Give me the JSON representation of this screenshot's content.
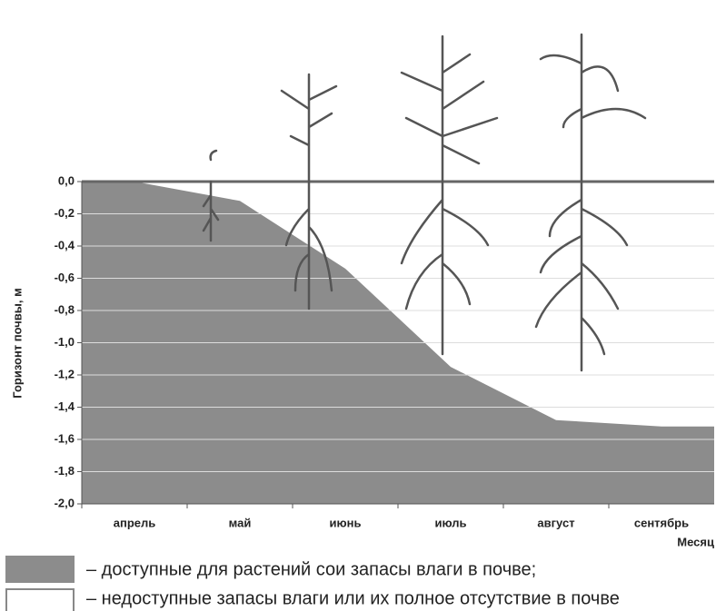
{
  "chart_data": {
    "type": "area",
    "y_label": "Горизонт почвы, м",
    "x_label": "Месяц",
    "categories": [
      "апрель",
      "май",
      "июнь",
      "июль",
      "август",
      "сентябрь"
    ],
    "values": [
      0.0,
      -0.12,
      -0.54,
      -1.15,
      -1.48,
      -1.52
    ],
    "color": "#8c8c8c",
    "ylim": [
      -2.0,
      0.0
    ],
    "yticks": [
      {
        "value": 0.0,
        "label": "0,0"
      },
      {
        "value": -0.2,
        "label": "-0,2"
      },
      {
        "value": -0.4,
        "label": "-0,4"
      },
      {
        "value": -0.6,
        "label": "-0,6"
      },
      {
        "value": -0.8,
        "label": "-0,8"
      },
      {
        "value": -1.0,
        "label": "-1,0"
      },
      {
        "value": -1.2,
        "label": "-1,2"
      },
      {
        "value": -1.4,
        "label": "-1,4"
      },
      {
        "value": -1.6,
        "label": "-1,6"
      },
      {
        "value": -1.8,
        "label": "-1,8"
      },
      {
        "value": -2.0,
        "label": "-2,0"
      }
    ],
    "grid": true,
    "legend": [
      {
        "label": "– доступные для растений сои запасы влаги в почве;",
        "color": "#8c8c8c"
      },
      {
        "label": "– недоступные запасы влаги или их полное отсутствие в почве",
        "color": "#ffffff"
      }
    ]
  }
}
